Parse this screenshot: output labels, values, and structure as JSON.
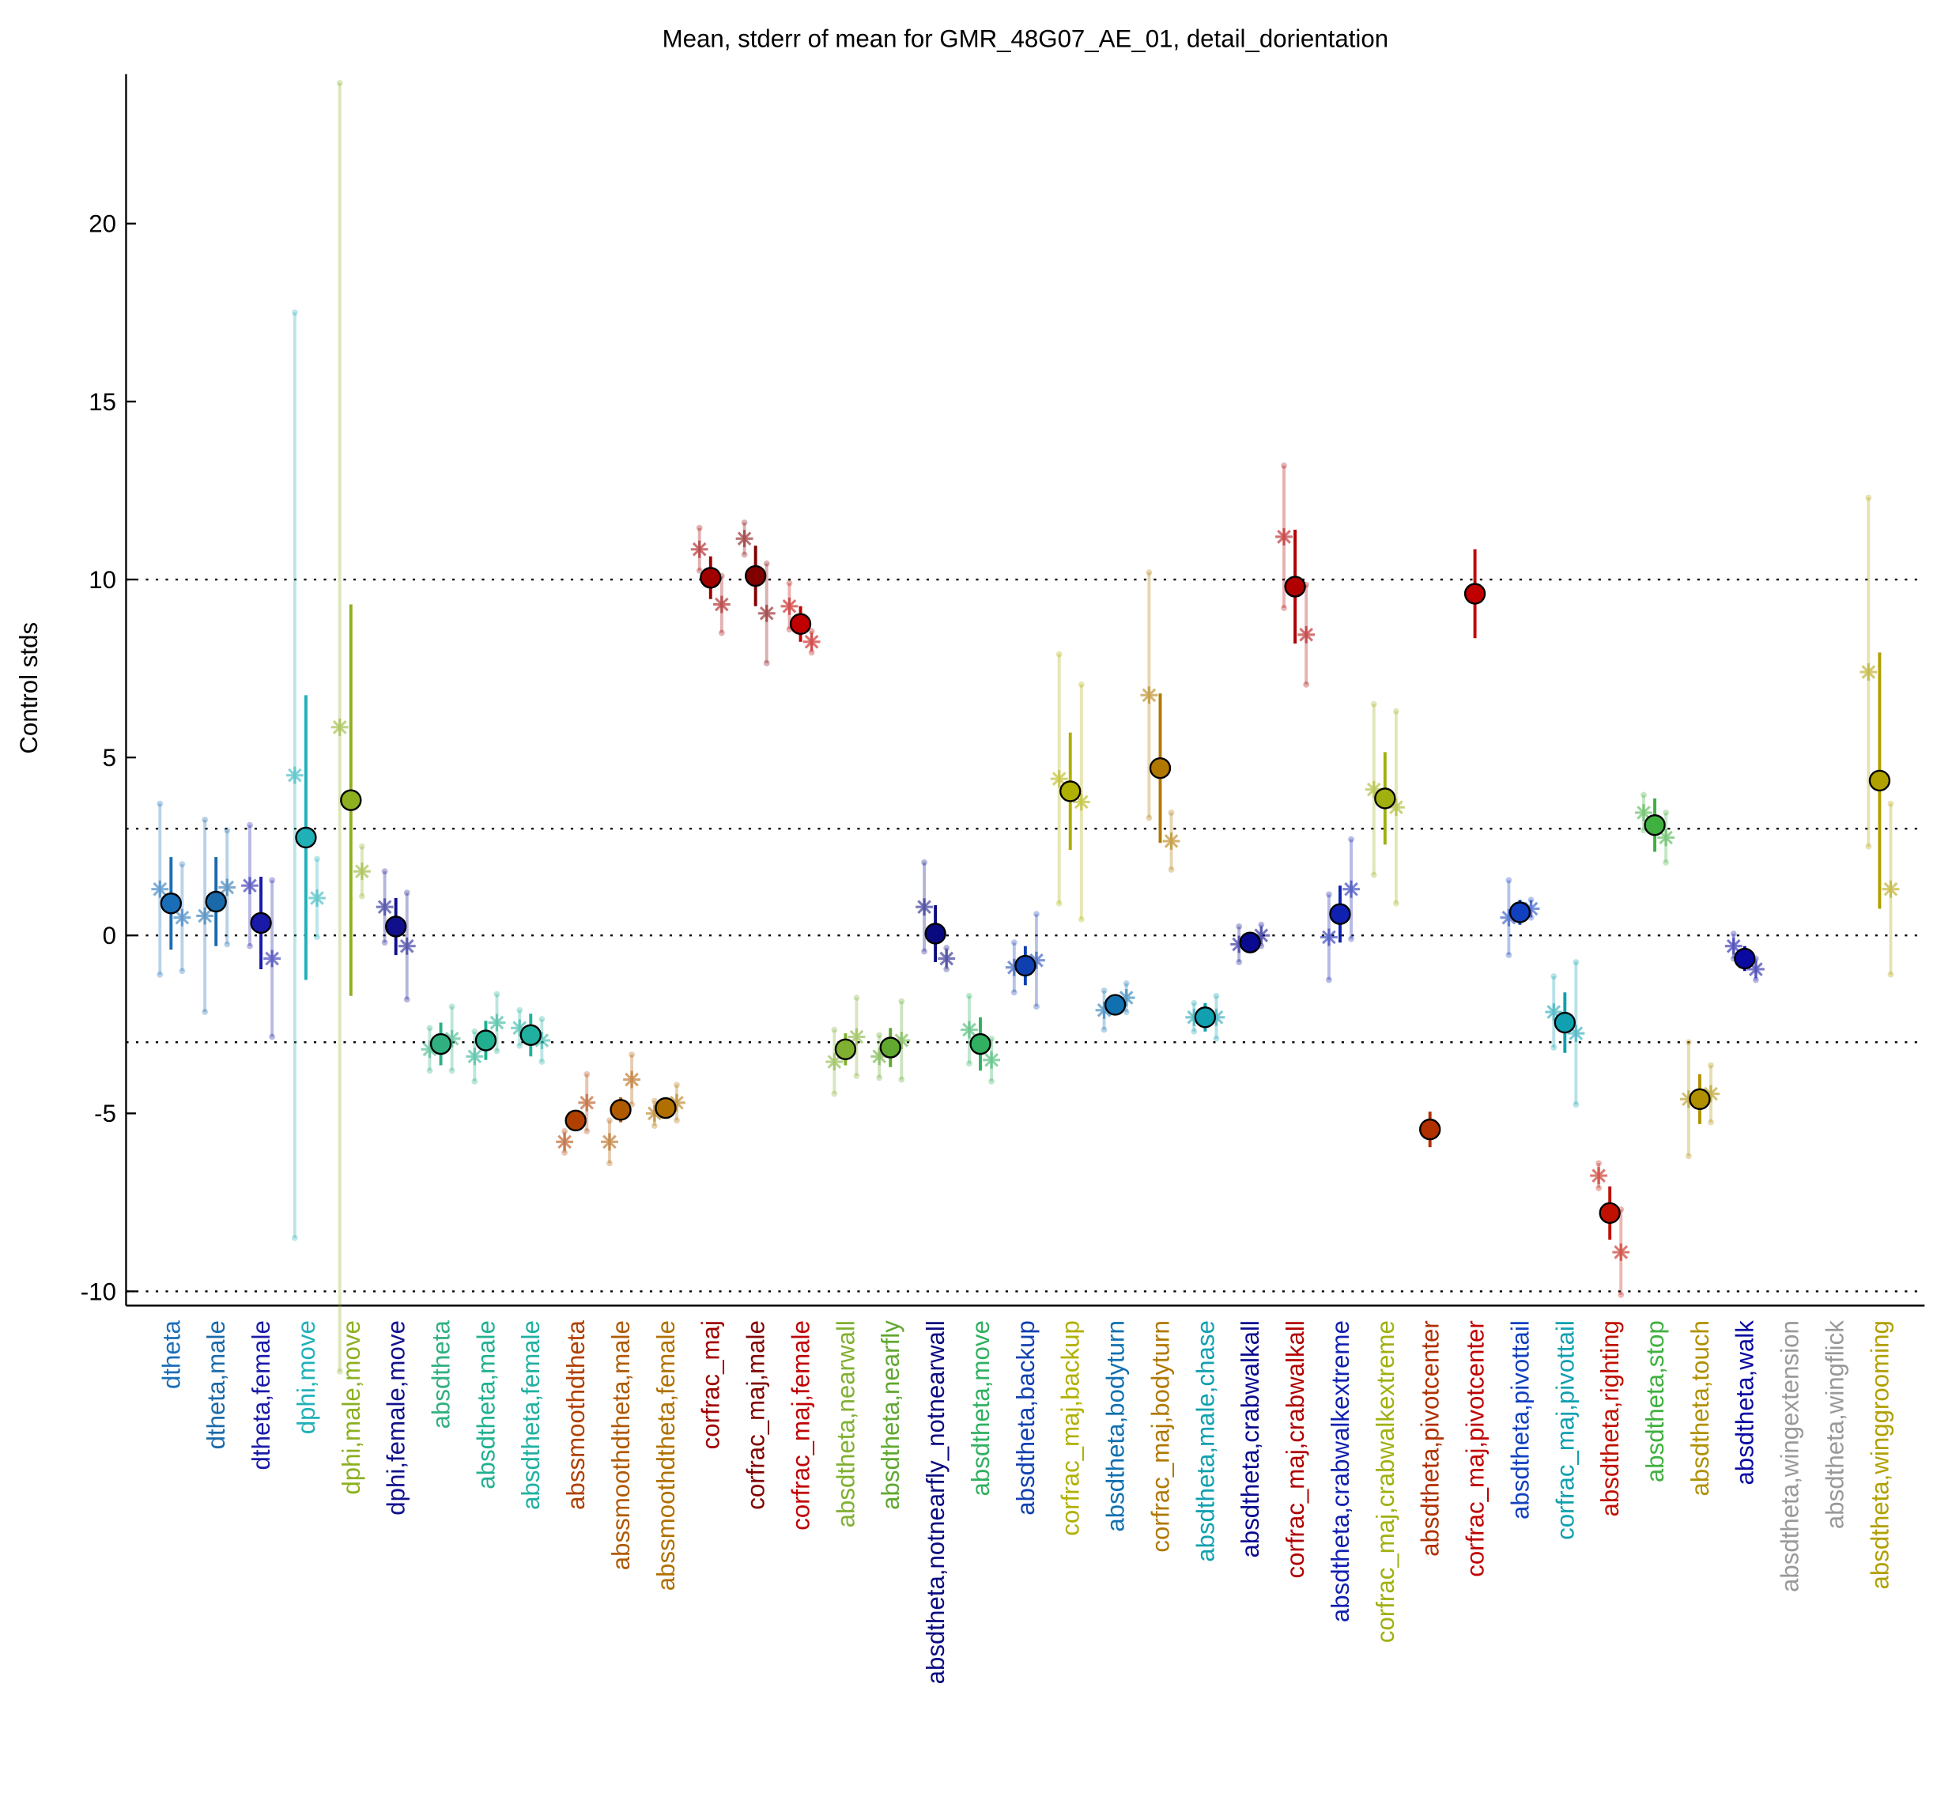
{
  "chart_data": {
    "type": "errorbar",
    "title": "Mean, stderr of mean for GMR_48G07_AE_01, detail_dorientation",
    "ylabel": "Control stds",
    "categories": [
      "dtheta",
      "dtheta,male",
      "dtheta,female",
      "dphi,move",
      "dphi,male,move",
      "dphi,female,move",
      "absdtheta",
      "absdtheta,male",
      "absdtheta,female",
      "abssmoothdtheta",
      "abssmoothdtheta,male",
      "abssmoothdtheta,female",
      "corfrac_maj",
      "corfrac_maj,male",
      "corfrac_maj,female",
      "absdtheta,nearwall",
      "absdtheta,nearfly",
      "absdtheta,notnearfly_notnearwall",
      "absdtheta,move",
      "absdtheta,backup",
      "corfrac_maj,backup",
      "absdtheta,bodyturn",
      "corfrac_maj,bodyturn",
      "absdtheta,male,chase",
      "absdtheta,crabwalkall",
      "corfrac_maj,crabwalkall",
      "absdtheta,crabwalkextreme",
      "corfrac_maj,crabwalkextreme",
      "absdtheta,pivotcenter",
      "corfrac_maj,pivotcenter",
      "absdtheta,pivottail",
      "corfrac_maj,pivottail",
      "absdtheta,righting",
      "absdtheta,stop",
      "absdtheta,touch",
      "absdtheta,walk",
      "absdtheta,wingextension",
      "absdtheta,wingflick",
      "absdtheta,winggrooming"
    ],
    "colors": [
      "#1a6eb8",
      "#1a6aaa",
      "#1a1aa8",
      "#20b0b8",
      "#8cb020",
      "#10108c",
      "#30b080",
      "#20b090",
      "#20b0a0",
      "#b04000",
      "#b05a00",
      "#b07000",
      "#a00000",
      "#800000",
      "#c00000",
      "#80b030",
      "#60a830",
      "#0a0a80",
      "#30b060",
      "#1040b0",
      "#b0b000",
      "#1070b0",
      "#b07800",
      "#10a0b0",
      "#0a0a90",
      "#b00000",
      "#1020b0",
      "#a0b010",
      "#b03000",
      "#c00000",
      "#1040c0",
      "#10a0b0",
      "#c01000",
      "#40b040",
      "#b09000",
      "#0a0aa0",
      "#999999",
      "#999999",
      "#b0a000"
    ],
    "values": [
      0.9,
      0.95,
      0.35,
      2.75,
      3.8,
      0.25,
      -3.05,
      -2.95,
      -2.8,
      -5.2,
      -4.9,
      -4.85,
      10.05,
      10.1,
      8.75,
      -3.2,
      -3.15,
      0.05,
      -3.05,
      -0.85,
      4.05,
      -1.95,
      4.7,
      -2.3,
      -0.2,
      9.8,
      0.6,
      3.85,
      -5.45,
      9.6,
      0.65,
      -2.45,
      -7.8,
      3.1,
      -4.6,
      -0.65,
      null,
      null,
      4.35
    ],
    "errors": [
      1.3,
      1.25,
      1.3,
      4.0,
      5.5,
      0.8,
      0.6,
      0.55,
      0.6,
      0.2,
      0.35,
      0.3,
      0.6,
      0.85,
      0.5,
      0.45,
      0.55,
      0.8,
      0.75,
      0.55,
      1.65,
      0.25,
      2.1,
      0.4,
      0.2,
      1.6,
      0.8,
      1.3,
      0.5,
      1.25,
      0.35,
      0.85,
      0.75,
      0.75,
      0.7,
      0.35,
      null,
      null,
      3.6
    ],
    "left_values": [
      1.3,
      0.55,
      1.4,
      4.5,
      5.85,
      0.8,
      -3.2,
      -3.4,
      -2.6,
      -5.8,
      -5.8,
      -5.0,
      10.85,
      11.15,
      9.25,
      -3.55,
      -3.4,
      0.8,
      -2.65,
      -0.9,
      4.4,
      -2.1,
      6.75,
      -2.3,
      -0.25,
      11.2,
      -0.05,
      4.1,
      null,
      null,
      0.5,
      -2.15,
      -6.75,
      3.45,
      -4.6,
      -0.3,
      null,
      null,
      7.4
    ],
    "left_errors": [
      2.4,
      2.7,
      1.7,
      13.0,
      18.1,
      1.0,
      0.6,
      0.7,
      0.5,
      0.3,
      0.6,
      0.35,
      0.6,
      0.45,
      0.65,
      0.9,
      0.6,
      1.25,
      0.95,
      0.7,
      3.5,
      0.55,
      3.45,
      0.4,
      0.5,
      2.0,
      1.2,
      2.4,
      null,
      null,
      1.05,
      1.0,
      0.35,
      0.5,
      1.6,
      0.35,
      null,
      null,
      4.9
    ],
    "right_values": [
      0.5,
      1.35,
      -0.65,
      1.05,
      1.8,
      -0.3,
      -2.9,
      -2.45,
      -2.95,
      -4.7,
      -4.05,
      -4.7,
      9.3,
      9.05,
      8.25,
      -2.85,
      -2.95,
      -0.65,
      -3.5,
      -0.7,
      3.75,
      -1.75,
      2.65,
      -2.3,
      0.0,
      8.45,
      1.3,
      3.6,
      null,
      null,
      0.75,
      -2.75,
      -8.9,
      2.75,
      -4.45,
      -0.95,
      null,
      null,
      1.3
    ],
    "right_errors": [
      1.5,
      1.6,
      2.2,
      1.1,
      0.7,
      1.5,
      0.9,
      0.8,
      0.6,
      0.8,
      0.7,
      0.5,
      0.8,
      1.4,
      0.3,
      1.1,
      1.1,
      0.3,
      0.6,
      1.3,
      3.3,
      0.4,
      0.8,
      0.6,
      0.3,
      1.4,
      1.4,
      2.7,
      null,
      null,
      0.25,
      2.0,
      1.2,
      0.7,
      0.8,
      0.3,
      null,
      null,
      2.4
    ],
    "ylim": [
      -10.4,
      24.2
    ],
    "yticks": [
      -10,
      -5,
      0,
      5,
      10,
      15,
      20
    ],
    "reference_lines": [
      -10,
      -3,
      0,
      3,
      10
    ]
  }
}
